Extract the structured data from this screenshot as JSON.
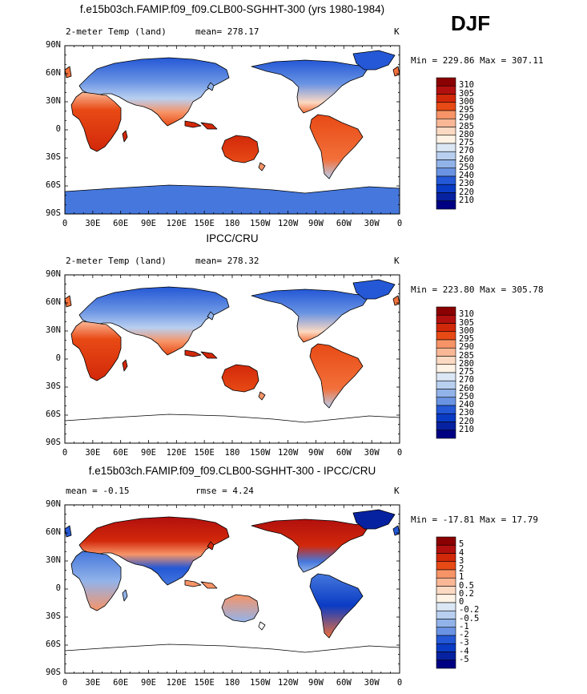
{
  "season": "DJF",
  "lon_ticks": [
    "0",
    "30E",
    "60E",
    "90E",
    "120E",
    "150E",
    "180",
    "150W",
    "120W",
    "90W",
    "60W",
    "30W",
    "0"
  ],
  "lat_ticks": [
    "90N",
    "60N",
    "30N",
    "0",
    "30S",
    "60S",
    "90S"
  ],
  "colors": {
    "abs_bar": [
      "#8b0000",
      "#b2100e",
      "#d2280a",
      "#e84a15",
      "#f2703a",
      "#f79467",
      "#fab796",
      "#fcd9c2",
      "#fff3e6",
      "#dbe7f5",
      "#b8cff0",
      "#92b3ea",
      "#6a94e3",
      "#4577dc",
      "#2458d6",
      "#0a3bc4",
      "#0722a0",
      "#000083"
    ],
    "diff_bar": [
      "#8b0000",
      "#b2100e",
      "#d2280a",
      "#e84a15",
      "#f2703a",
      "#f79467",
      "#fab796",
      "#fcd9c2",
      "#fff3e6",
      "#dbe7f5",
      "#b8cff0",
      "#92b3ea",
      "#6a94e3",
      "#4577dc",
      "#2458d6",
      "#0a3bc4",
      "#0722a0",
      "#000083"
    ]
  },
  "panels": [
    {
      "title": "f.e15b03ch.FAMIP.f09_f09.CLB00-SGHHT-300 (yrs 1980-1984)",
      "left_label": "2-meter Temp (land)",
      "center_label": "mean= 278.17",
      "rmse_label": "",
      "unit": "K",
      "stats": "Min = 229.86 Max = 307.11",
      "colorbar_labels": [
        "310",
        "305",
        "300",
        "295",
        "290",
        "285",
        "280",
        "275",
        "270",
        "260",
        "250",
        "240",
        "230",
        "220",
        "210"
      ],
      "antarctica_filled": true
    },
    {
      "title": "IPCC/CRU",
      "left_label": "2-meter Temp (land)",
      "center_label": "mean= 278.32",
      "rmse_label": "",
      "unit": "K",
      "stats": "Min = 223.80 Max = 305.78",
      "colorbar_labels": [
        "310",
        "305",
        "300",
        "295",
        "290",
        "285",
        "280",
        "275",
        "270",
        "260",
        "250",
        "240",
        "230",
        "220",
        "210"
      ],
      "antarctica_filled": false
    },
    {
      "title": "f.e15b03ch.FAMIP.f09_f09.CLB00-SGHHT-300 - IPCC/CRU",
      "left_label": "mean =   -0.15",
      "center_label": "rmse =    4.24",
      "rmse_label": "",
      "unit": "K",
      "stats": "Min = -17.81 Max =  17.79",
      "colorbar_labels": [
        "5",
        "4",
        "3",
        "2",
        "1",
        "0.5",
        "0.2",
        "0",
        "-0.2",
        "-0.5",
        "-1",
        "-2",
        "-3",
        "-4",
        "-5"
      ],
      "antarctica_filled": false
    }
  ]
}
